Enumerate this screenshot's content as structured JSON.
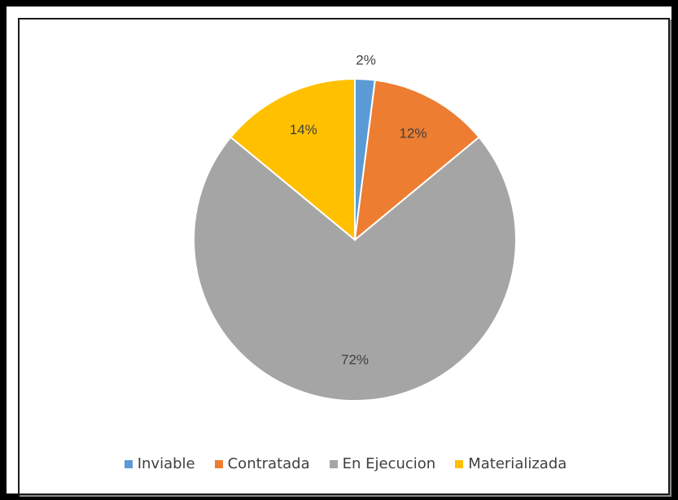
{
  "chart_data": {
    "type": "pie",
    "title": "",
    "categories": [
      "Inviable",
      "Contratada",
      "En Ejecucion",
      "Materializada"
    ],
    "values": [
      2,
      12,
      72,
      14
    ],
    "data_labels": [
      "2%",
      "12%",
      "72%",
      "14%"
    ],
    "colors": [
      "#5B9BD5",
      "#ED7D31",
      "#A5A5A5",
      "#FFC000"
    ],
    "legend_position": "bottom"
  }
}
